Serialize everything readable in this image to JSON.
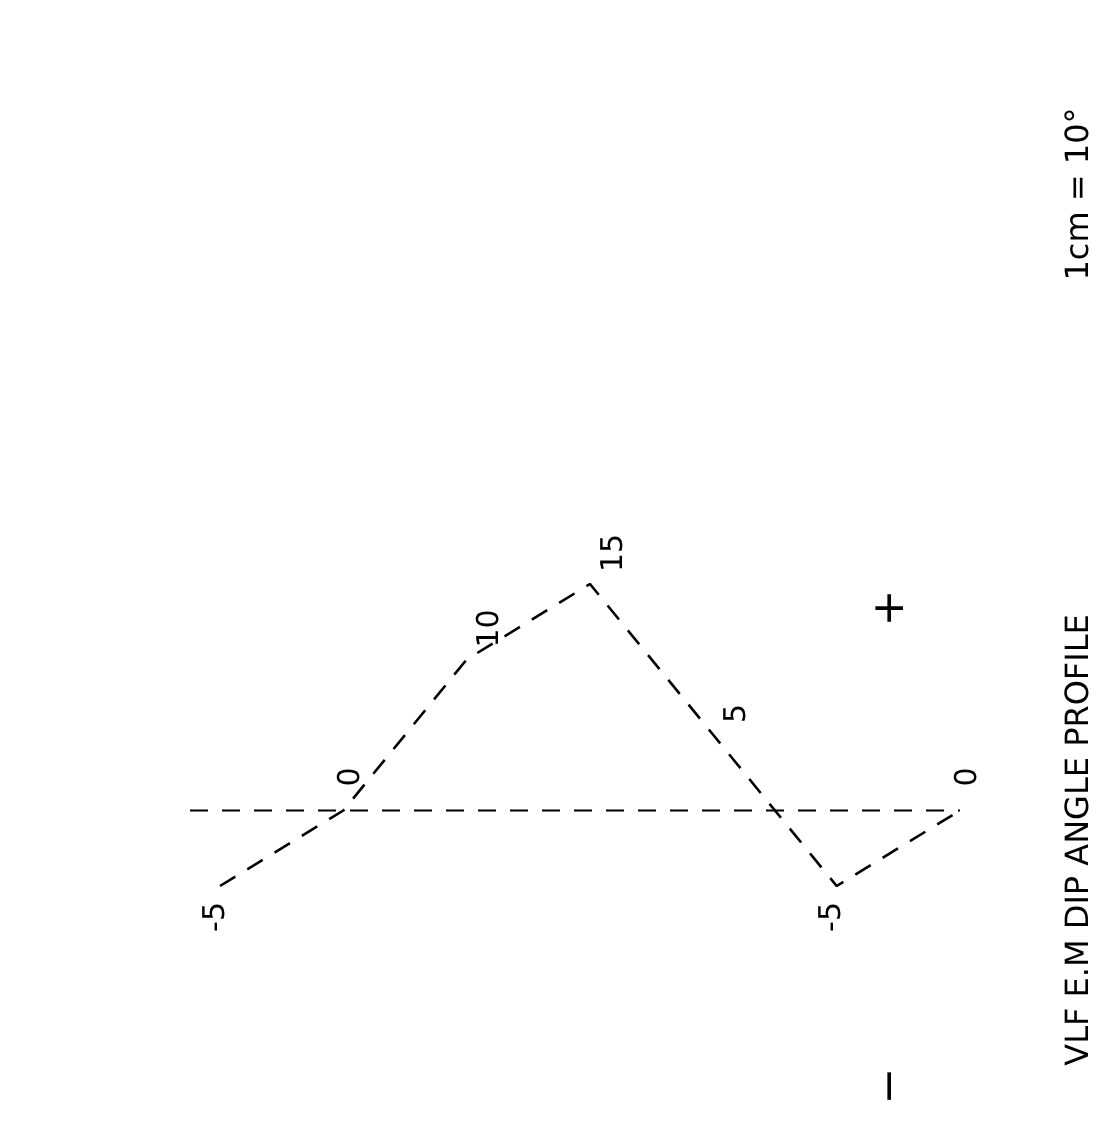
{
  "chart_data": {
    "type": "line",
    "title": "VLF E.M DIP ANGLE PROFILE",
    "subtitle": "1cm = 10°",
    "categories": [
      null,
      null,
      null,
      null,
      null,
      null,
      null
    ],
    "series": [
      {
        "color": "#000000",
        "values": [
          -5,
          0,
          10,
          15,
          5,
          -5,
          0
        ]
      }
    ],
    "data_labels": true,
    "marker": "none",
    "line_style": "dashed",
    "legend": false,
    "grid": false,
    "tick_labels": false,
    "ref_lines": [
      {
        "axis": "y",
        "value": 0,
        "color": "#000000",
        "line_style": "dashed"
      }
    ],
    "annotations": [
      "+",
      "−"
    ]
  }
}
